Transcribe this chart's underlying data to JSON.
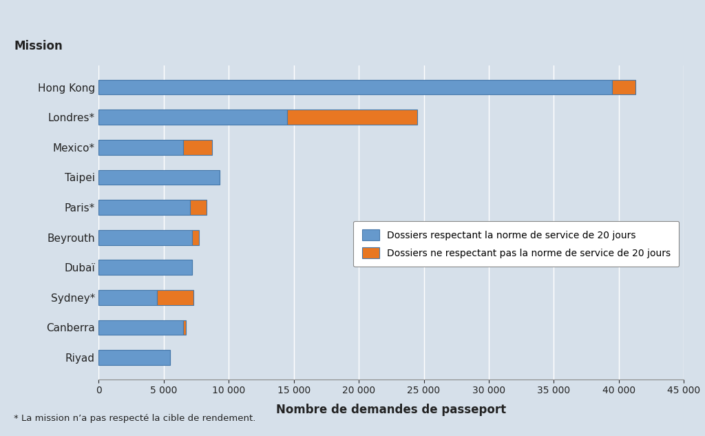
{
  "missions": [
    "Hong Kong",
    "Londres*",
    "Mexico*",
    "Taipei",
    "Paris*",
    "Beyrouth",
    "Dubaï",
    "Sydney*",
    "Canberra",
    "Riyad"
  ],
  "within_norm": [
    39500,
    14500,
    6500,
    9300,
    7000,
    7200,
    7200,
    4500,
    6500,
    5500
  ],
  "beyond_norm": [
    1800,
    10000,
    2200,
    0,
    1300,
    500,
    0,
    2800,
    200,
    0
  ],
  "color_within": "#6699CC",
  "color_beyond": "#E87722",
  "background_color": "#D6E0EA",
  "bar_edge_color": "#4477AA",
  "xlabel": "Nombre de demandes de passeport",
  "ylabel_title": "Mission",
  "legend_within": "Dossiers respectant la norme de service de 20 jours",
  "legend_beyond": "Dossiers ne respectant pas la norme de service de 20 jours",
  "footnote": "* La mission n’a pas respecté la cible de rendement.",
  "xlim": [
    0,
    45000
  ],
  "xticks": [
    0,
    5000,
    10000,
    15000,
    20000,
    25000,
    30000,
    35000,
    40000,
    45000
  ],
  "xtick_labels": [
    "0",
    "5 000",
    "10 000",
    "15 000",
    "20 000",
    "25 000",
    "30 000",
    "35 000",
    "40 000",
    "45 000"
  ]
}
